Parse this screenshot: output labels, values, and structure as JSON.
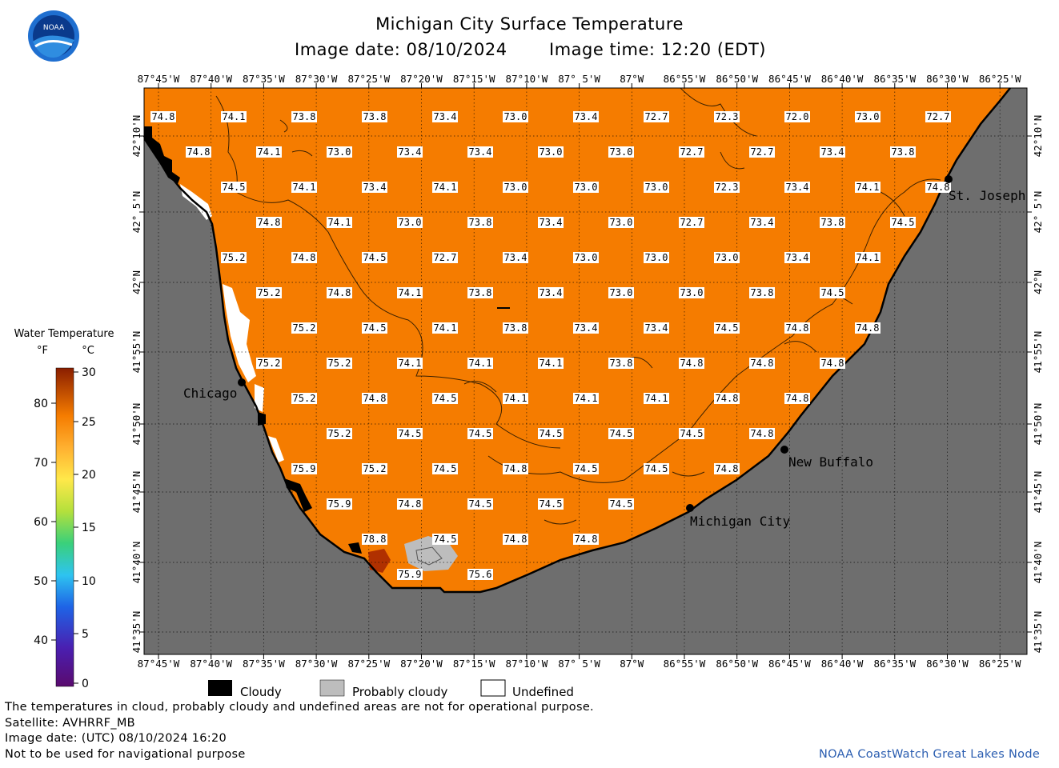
{
  "header": {
    "title": "Michigan City Surface Temperature",
    "date_label": "Image date: 08/10/2024",
    "time_label": "Image time: 12:20 (EDT)"
  },
  "colors": {
    "water": "#f57c00",
    "land": "#6e6e6e",
    "warm": "#b03000",
    "cloud": "#000000",
    "probably_cloudy": "#bdbdbd",
    "undefined": "#ffffff",
    "credit": "#2a5db0"
  },
  "map": {
    "lon_labels": [
      "87°45'W",
      "87°40'W",
      "87°35'W",
      "87°30'W",
      "87°25'W",
      "87°20'W",
      "87°15'W",
      "87°10'W",
      "87° 5'W",
      "87°W",
      "86°55'W",
      "86°50'W",
      "86°45'W",
      "86°40'W",
      "86°35'W",
      "86°30'W",
      "86°25'W"
    ],
    "lat_labels": [
      "42°10'N",
      "42° 5'N",
      "42°N",
      "41°55'N",
      "41°50'N",
      "41°45'N",
      "41°40'N",
      "41°35'N"
    ],
    "cities": [
      {
        "name": "St. Joseph"
      },
      {
        "name": "Chicago"
      },
      {
        "name": "New Buffalo"
      },
      {
        "name": "Michigan City"
      }
    ],
    "temperature_rows": [
      [
        "74.8",
        "74.1",
        "73.8",
        "73.8",
        "73.4",
        "73.0",
        "73.4",
        "72.7",
        "72.3",
        "72.0",
        "73.0",
        "72.7"
      ],
      [
        "74.8",
        "74.1",
        "73.0",
        "73.4",
        "73.4",
        "73.0",
        "73.0",
        "72.7",
        "72.7",
        "73.4",
        "73.8"
      ],
      [
        "74.5",
        "74.1",
        "73.4",
        "74.1",
        "73.0",
        "73.0",
        "73.0",
        "72.3",
        "73.4",
        "74.1",
        "74.8"
      ],
      [
        "74.8",
        "74.1",
        "73.0",
        "73.8",
        "73.4",
        "73.0",
        "72.7",
        "73.4",
        "73.8",
        "74.5"
      ],
      [
        "75.2",
        "74.8",
        "74.5",
        "72.7",
        "73.4",
        "73.0",
        "73.0",
        "73.0",
        "73.4",
        "74.1"
      ],
      [
        "75.2",
        "74.8",
        "74.1",
        "73.8",
        "73.4",
        "73.0",
        "73.0",
        "73.8",
        "74.5"
      ],
      [
        "75.2",
        "74.5",
        "74.1",
        "73.8",
        "73.4",
        "73.4",
        "74.5",
        "74.8",
        "74.8"
      ],
      [
        "75.2",
        "75.2",
        "74.1",
        "74.1",
        "74.1",
        "73.8",
        "74.8",
        "74.8",
        "74.8"
      ],
      [
        "75.2",
        "74.8",
        "74.5",
        "74.1",
        "74.1",
        "74.1",
        "74.8",
        "74.8"
      ],
      [
        "75.2",
        "74.5",
        "74.5",
        "74.5",
        "74.5",
        "74.5",
        "74.8"
      ],
      [
        "75.9",
        "75.2",
        "74.5",
        "74.8",
        "74.5",
        "74.5",
        "74.8"
      ],
      [
        "75.9",
        "74.8",
        "74.5",
        "74.5",
        "74.5"
      ],
      [
        "78.8",
        "74.5",
        "74.8",
        "74.8"
      ],
      [
        "75.9",
        "75.6"
      ]
    ]
  },
  "colorbar": {
    "title": "Water Temperature",
    "unit_f": "°F",
    "unit_c": "°C",
    "f_ticks": [
      "80",
      "70",
      "60",
      "50",
      "40"
    ],
    "c_ticks": [
      "30",
      "25",
      "20",
      "15",
      "10",
      "5",
      "0"
    ]
  },
  "legend": {
    "cloudy": "Cloudy",
    "probably_cloudy": "Probably cloudy",
    "undefined": "Undefined"
  },
  "footer": {
    "note": "The temperatures in cloud, probably cloudy and undefined areas are not for operational purpose.",
    "satellite": "Satellite: AVHRRF_MB",
    "utc_date": "Image date: (UTC) 08/10/2024  16:20",
    "nav_warning": "Not to be used for navigational purpose",
    "credit": "NOAA CoastWatch Great Lakes Node"
  },
  "logo": {
    "text": "NOAA"
  }
}
